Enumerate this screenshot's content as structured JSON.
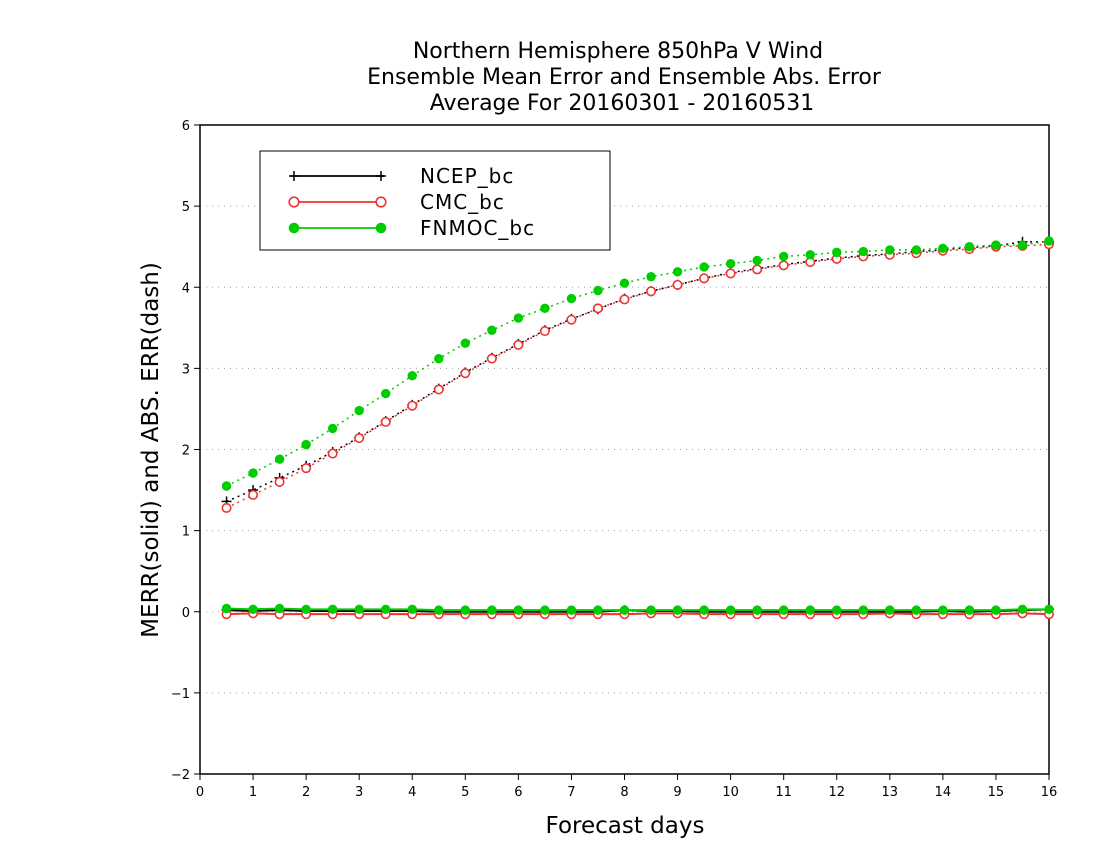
{
  "chart_data": {
    "type": "line",
    "title": [
      "Northern Hemisphere 850hPa V Wind",
      "Ensemble Mean Error and Ensemble Abs. Error",
      "Average For 20160301 - 20160531"
    ],
    "xlabel": "Forecast days",
    "ylabel": "MERR(solid) and ABS. ERR(dash)",
    "xlim": [
      0,
      16
    ],
    "ylim": [
      -2,
      6
    ],
    "x_ticks": [
      "0",
      "1",
      "2",
      "3",
      "4",
      "5",
      "6",
      "7",
      "8",
      "9",
      "10",
      "11",
      "12",
      "13",
      "14",
      "15",
      "16"
    ],
    "y_ticks": [
      "−2",
      "−1",
      "0",
      "1",
      "2",
      "3",
      "4",
      "5",
      "6"
    ],
    "grid": "horizontal dotted",
    "legend_position": "top-left",
    "x": [
      0.5,
      1,
      1.5,
      2,
      2.5,
      3,
      3.5,
      4,
      4.5,
      5,
      5.5,
      6,
      6.5,
      7,
      7.5,
      8,
      8.5,
      9,
      9.5,
      10,
      10.5,
      11,
      11.5,
      12,
      12.5,
      13,
      13.5,
      14,
      14.5,
      15,
      15.5,
      16
    ],
    "series": [
      {
        "name": "NCEP_bc",
        "color": "#000000",
        "marker": "plus",
        "merr": [
          0.02,
          0.01,
          0.02,
          0.01,
          0.01,
          0.01,
          0.01,
          0.01,
          0.0,
          0.0,
          0.0,
          0.0,
          0.0,
          0.0,
          0.0,
          0.02,
          0.01,
          0.01,
          0.0,
          0.0,
          0.0,
          0.0,
          0.0,
          0.0,
          0.0,
          0.0,
          0.0,
          0.01,
          0.0,
          0.01,
          0.02,
          0.03
        ],
        "abs_err": [
          1.36,
          1.5,
          1.65,
          1.8,
          1.97,
          2.15,
          2.35,
          2.55,
          2.75,
          2.95,
          3.13,
          3.3,
          3.47,
          3.61,
          3.73,
          3.86,
          3.95,
          4.03,
          4.11,
          4.18,
          4.23,
          4.28,
          4.32,
          4.36,
          4.39,
          4.41,
          4.44,
          4.46,
          4.49,
          4.51,
          4.56,
          4.56
        ]
      },
      {
        "name": "CMC_bc",
        "color": "#ee3333",
        "marker": "open-circle",
        "merr": [
          -0.03,
          -0.02,
          -0.03,
          -0.03,
          -0.03,
          -0.03,
          -0.03,
          -0.03,
          -0.03,
          -0.03,
          -0.03,
          -0.03,
          -0.03,
          -0.03,
          -0.03,
          -0.03,
          -0.02,
          -0.02,
          -0.03,
          -0.03,
          -0.03,
          -0.03,
          -0.03,
          -0.03,
          -0.03,
          -0.02,
          -0.03,
          -0.03,
          -0.03,
          -0.03,
          -0.02,
          -0.03
        ],
        "abs_err": [
          1.28,
          1.44,
          1.6,
          1.77,
          1.95,
          2.14,
          2.34,
          2.54,
          2.74,
          2.94,
          3.12,
          3.29,
          3.46,
          3.6,
          3.74,
          3.85,
          3.95,
          4.03,
          4.11,
          4.17,
          4.22,
          4.27,
          4.31,
          4.35,
          4.38,
          4.4,
          4.42,
          4.45,
          4.47,
          4.5,
          4.51,
          4.53
        ]
      },
      {
        "name": "FNMOC_bc",
        "color": "#00cc00",
        "marker": "filled-circle",
        "merr": [
          0.04,
          0.03,
          0.04,
          0.03,
          0.03,
          0.03,
          0.03,
          0.03,
          0.02,
          0.02,
          0.02,
          0.02,
          0.02,
          0.02,
          0.02,
          0.02,
          0.02,
          0.02,
          0.02,
          0.02,
          0.02,
          0.02,
          0.02,
          0.02,
          0.02,
          0.02,
          0.02,
          0.02,
          0.02,
          0.02,
          0.03,
          0.03
        ],
        "abs_err": [
          1.55,
          1.71,
          1.88,
          2.06,
          2.26,
          2.48,
          2.69,
          2.91,
          3.12,
          3.31,
          3.47,
          3.62,
          3.74,
          3.86,
          3.96,
          4.05,
          4.13,
          4.19,
          4.25,
          4.29,
          4.33,
          4.38,
          4.4,
          4.43,
          4.44,
          4.46,
          4.46,
          4.48,
          4.5,
          4.52,
          4.52,
          4.57
        ]
      }
    ]
  }
}
